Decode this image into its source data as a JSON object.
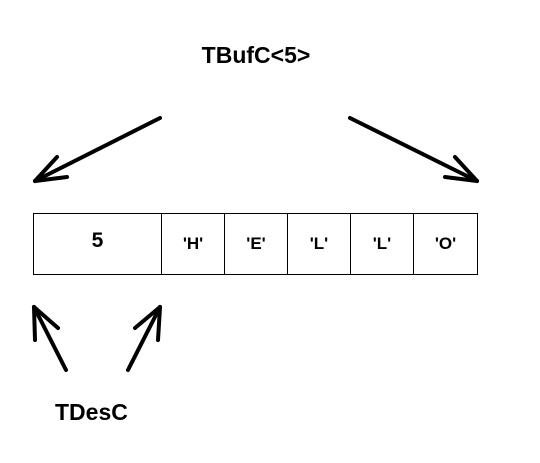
{
  "diagram": {
    "top_label": "TBufC<5>",
    "bottom_label": "TDesC",
    "length_cell": "5",
    "char_cells": [
      "'H'",
      "'E'",
      "'L'",
      "'L'",
      "'O'"
    ]
  },
  "colors": {
    "stroke": "#000000",
    "background": "#ffffff"
  }
}
